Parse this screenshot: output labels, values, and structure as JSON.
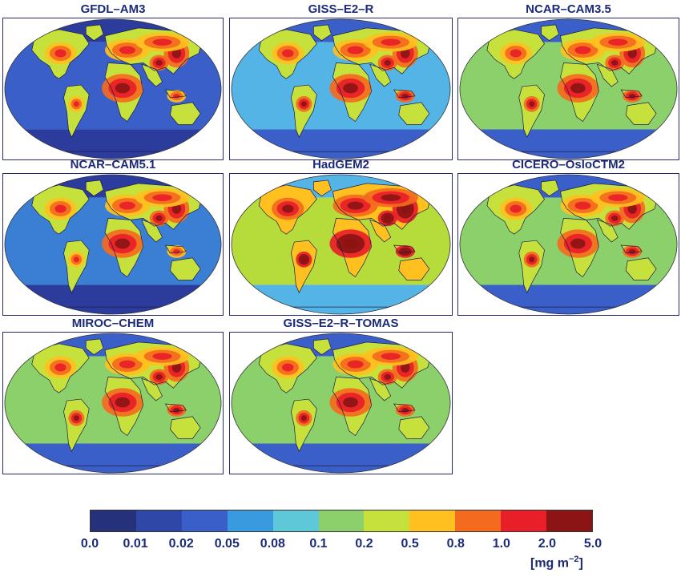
{
  "panels": [
    {
      "title": "GFDL–AM3",
      "level": 0.45,
      "bg": "#2c3c9c",
      "ocean": "#3a5fc8"
    },
    {
      "title": "GISS–E2–R",
      "level": 0.6,
      "bg": "#3a5fc8",
      "ocean": "#54b4e6"
    },
    {
      "title": "NCAR–CAM3.5",
      "level": 0.6,
      "bg": "#3a5fc8",
      "ocean": "#8cd06c"
    },
    {
      "title": "NCAR–CAM5.1",
      "level": 0.45,
      "bg": "#2c3c9c",
      "ocean": "#3a7fd4"
    },
    {
      "title": "HadGEM2",
      "level": 0.85,
      "bg": "#54b4e6",
      "ocean": "#b6dc3c"
    },
    {
      "title": "CICERO–OsloCTM2",
      "level": 0.6,
      "bg": "#3a5fc8",
      "ocean": "#8cd06c"
    },
    {
      "title": "MIROC–CHEM",
      "level": 0.55,
      "bg": "#3a5fc8",
      "ocean": "#8cd06c"
    },
    {
      "title": "GISS–E2–R–TOMAS",
      "level": 0.6,
      "bg": "#3a5fc8",
      "ocean": "#8cd06c"
    }
  ],
  "colorbar": {
    "colors": [
      "#26317c",
      "#2f47a6",
      "#3a5fc8",
      "#3a9ae0",
      "#5fc8d8",
      "#8cd06c",
      "#c6e03c",
      "#ffc020",
      "#f46a1e",
      "#e81e28",
      "#8c1414"
    ],
    "ticks": [
      "0.0",
      "0.01",
      "0.02",
      "0.05",
      "0.08",
      "0.1",
      "0.2",
      "0.5",
      "0.8",
      "1.0",
      "2.0",
      "5.0"
    ],
    "units_prefix": "[mg m",
    "units_exp": "−2",
    "units_suffix": "]"
  }
}
